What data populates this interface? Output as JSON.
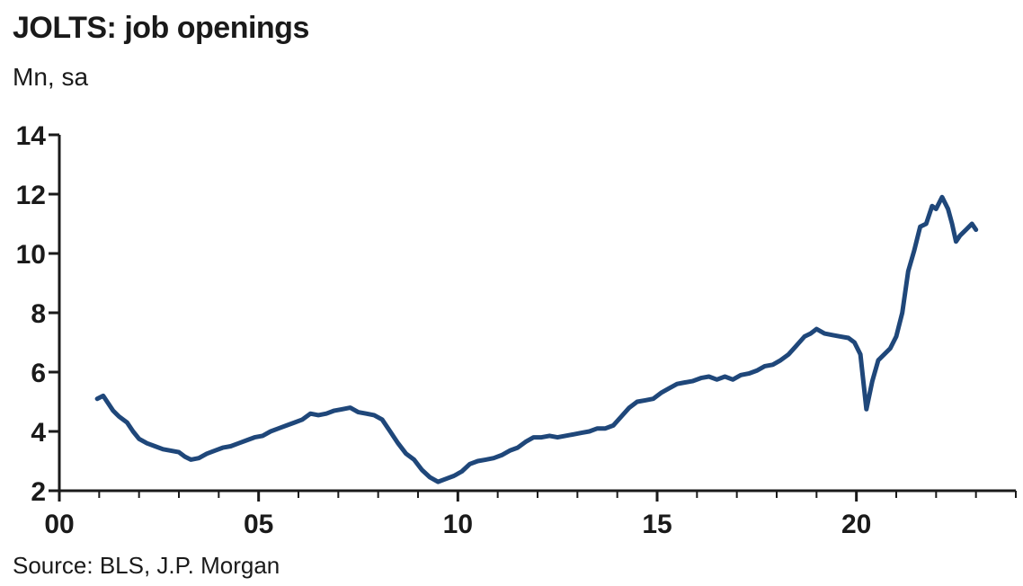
{
  "title": "JOLTS: job openings",
  "subtitle": "Mn, sa",
  "source": "Source: BLS, J.P. Morgan",
  "colors": {
    "line": "#1f477a",
    "axis": "#1a1a1a"
  },
  "chart_data": {
    "type": "line",
    "title": "JOLTS: job openings",
    "xlabel": "",
    "ylabel": "Mn, sa",
    "xlim": [
      2000,
      2024
    ],
    "ylim": [
      2,
      14
    ],
    "x_ticks": [
      2000,
      2005,
      2010,
      2015,
      2020
    ],
    "x_tick_labels": [
      "00",
      "05",
      "10",
      "15",
      "20"
    ],
    "y_ticks": [
      2,
      4,
      6,
      8,
      10,
      12,
      14
    ],
    "y_tick_labels": [
      "2",
      "4",
      "6",
      "8",
      "10",
      "12",
      "14"
    ],
    "grid": false,
    "legend": "none",
    "series": [
      {
        "x": [
          2000.95,
          2001.1,
          2001.2,
          2001.35,
          2001.5,
          2001.7,
          2001.85,
          2002.0,
          2002.2,
          2002.4,
          2002.6,
          2002.8,
          2003.0,
          2003.15,
          2003.3,
          2003.5,
          2003.7,
          2003.9,
          2004.1,
          2004.3,
          2004.5,
          2004.7,
          2004.9,
          2005.1,
          2005.3,
          2005.5,
          2005.7,
          2005.9,
          2006.1,
          2006.3,
          2006.5,
          2006.7,
          2006.9,
          2007.1,
          2007.3,
          2007.5,
          2007.7,
          2007.9,
          2008.1,
          2008.3,
          2008.5,
          2008.7,
          2008.9,
          2009.1,
          2009.3,
          2009.5,
          2009.7,
          2009.9,
          2010.1,
          2010.3,
          2010.5,
          2010.7,
          2010.9,
          2011.1,
          2011.3,
          2011.5,
          2011.7,
          2011.9,
          2012.1,
          2012.3,
          2012.5,
          2012.7,
          2012.9,
          2013.1,
          2013.3,
          2013.5,
          2013.7,
          2013.9,
          2014.1,
          2014.3,
          2014.5,
          2014.7,
          2014.9,
          2015.1,
          2015.3,
          2015.5,
          2015.7,
          2015.9,
          2016.1,
          2016.3,
          2016.5,
          2016.7,
          2016.9,
          2017.1,
          2017.3,
          2017.5,
          2017.7,
          2017.9,
          2018.1,
          2018.3,
          2018.5,
          2018.7,
          2018.85,
          2019.0,
          2019.2,
          2019.4,
          2019.6,
          2019.8,
          2019.95,
          2020.1,
          2020.25,
          2020.4,
          2020.55,
          2020.7,
          2020.85,
          2021.0,
          2021.15,
          2021.3,
          2021.45,
          2021.6,
          2021.75,
          2021.9,
          2022.0,
          2022.15,
          2022.3,
          2022.4,
          2022.5,
          2022.6,
          2022.75,
          2022.9,
          2023.0
        ],
        "y": [
          5.1,
          5.2,
          5.0,
          4.7,
          4.5,
          4.3,
          4.0,
          3.75,
          3.6,
          3.5,
          3.4,
          3.35,
          3.3,
          3.15,
          3.05,
          3.1,
          3.25,
          3.35,
          3.45,
          3.5,
          3.6,
          3.7,
          3.8,
          3.85,
          4.0,
          4.1,
          4.2,
          4.3,
          4.4,
          4.6,
          4.55,
          4.6,
          4.7,
          4.75,
          4.8,
          4.65,
          4.6,
          4.55,
          4.4,
          4.0,
          3.6,
          3.25,
          3.05,
          2.7,
          2.45,
          2.3,
          2.4,
          2.5,
          2.65,
          2.9,
          3.0,
          3.05,
          3.1,
          3.2,
          3.35,
          3.45,
          3.65,
          3.8,
          3.8,
          3.85,
          3.8,
          3.85,
          3.9,
          3.95,
          4.0,
          4.1,
          4.1,
          4.2,
          4.5,
          4.8,
          5.0,
          5.05,
          5.1,
          5.3,
          5.45,
          5.6,
          5.65,
          5.7,
          5.8,
          5.85,
          5.75,
          5.85,
          5.75,
          5.9,
          5.95,
          6.05,
          6.2,
          6.25,
          6.4,
          6.6,
          6.9,
          7.2,
          7.3,
          7.45,
          7.3,
          7.25,
          7.2,
          7.15,
          7.0,
          6.6,
          4.75,
          5.7,
          6.4,
          6.6,
          6.8,
          7.2,
          8.0,
          9.4,
          10.1,
          10.9,
          11.0,
          11.6,
          11.5,
          11.9,
          11.5,
          11.0,
          10.4,
          10.6,
          10.8,
          11.0,
          10.8
        ]
      }
    ]
  }
}
